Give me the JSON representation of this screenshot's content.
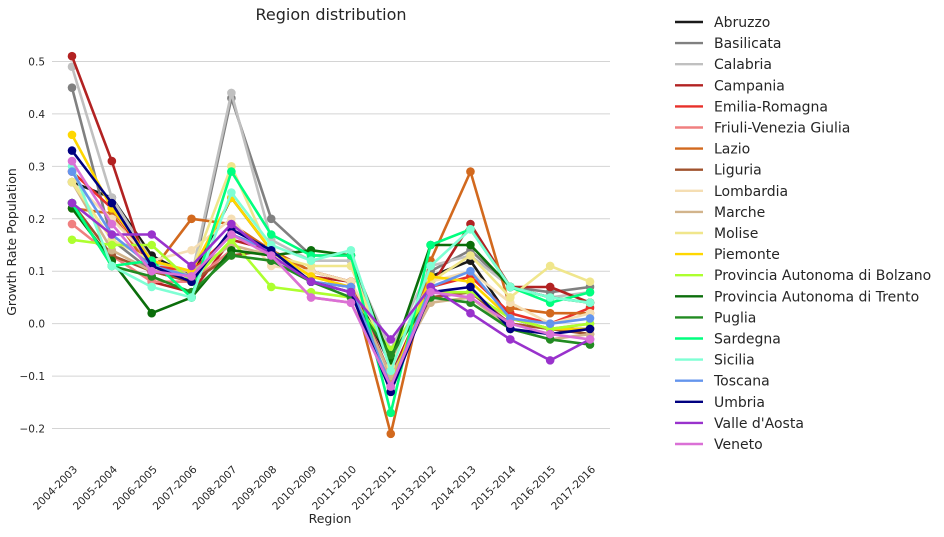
{
  "chart_data": {
    "type": "line",
    "title": "Region distribution",
    "xlabel": "Region",
    "ylabel": "Growth Rate Population",
    "ylim": [
      -0.26,
      0.56
    ],
    "yticks": [
      -0.2,
      -0.1,
      0.0,
      0.1,
      0.2,
      0.3,
      0.4,
      0.5
    ],
    "ytick_labels": [
      "−0.2",
      "−0.1",
      "0.0",
      "0.1",
      "0.2",
      "0.3",
      "0.4",
      "0.5"
    ],
    "grid": "horizontal",
    "legend_position": "right-outside",
    "categories": [
      "2004-2003",
      "2005-2004",
      "2006-2005",
      "2007-2006",
      "2008-2007",
      "2009-2008",
      "2010-2009",
      "2011-2010",
      "2012-2011",
      "2013-2012",
      "2014-2013",
      "2015-2014",
      "2016-2015",
      "2017-2016"
    ],
    "series": [
      {
        "name": "Abruzzo",
        "color": "#1a1a1a",
        "values": [
          0.27,
          0.24,
          0.13,
          0.09,
          0.24,
          0.14,
          0.1,
          0.08,
          -0.08,
          0.09,
          0.12,
          0.01,
          -0.01,
          -0.01
        ]
      },
      {
        "name": "Basilicata",
        "color": "#808080",
        "values": [
          0.45,
          0.16,
          0.1,
          0.08,
          0.43,
          0.2,
          0.13,
          0.13,
          -0.08,
          0.1,
          0.14,
          0.07,
          0.06,
          0.07
        ]
      },
      {
        "name": "Calabria",
        "color": "#c0c0c0",
        "values": [
          0.49,
          0.24,
          0.12,
          0.09,
          0.44,
          0.16,
          0.12,
          0.12,
          -0.05,
          0.11,
          0.13,
          0.07,
          0.05,
          0.06
        ]
      },
      {
        "name": "Campania",
        "color": "#b22222",
        "values": [
          0.51,
          0.31,
          0.08,
          0.06,
          0.16,
          0.14,
          0.09,
          0.08,
          -0.1,
          0.07,
          0.19,
          0.07,
          0.07,
          0.04
        ]
      },
      {
        "name": "Emilia-Romagna",
        "color": "#e8302a",
        "values": [
          0.29,
          0.22,
          0.11,
          0.1,
          0.17,
          0.14,
          0.1,
          0.08,
          -0.13,
          0.07,
          0.09,
          0.02,
          0.0,
          0.03
        ]
      },
      {
        "name": "Friuli-Venezia Giulia",
        "color": "#f08080",
        "values": [
          0.19,
          0.13,
          0.08,
          0.08,
          0.14,
          0.13,
          0.05,
          0.04,
          -0.11,
          0.05,
          0.06,
          0.0,
          -0.01,
          0.0
        ]
      },
      {
        "name": "Lazio",
        "color": "#d2691e",
        "values": [
          0.22,
          0.21,
          0.1,
          0.2,
          0.19,
          0.14,
          0.1,
          0.08,
          -0.21,
          0.12,
          0.29,
          0.03,
          0.02,
          0.02
        ]
      },
      {
        "name": "Liguria",
        "color": "#a0522d",
        "values": [
          0.23,
          0.13,
          0.1,
          0.08,
          0.13,
          0.14,
          0.08,
          0.07,
          -0.1,
          0.05,
          0.06,
          0.0,
          -0.01,
          -0.02
        ]
      },
      {
        "name": "Lombardia",
        "color": "#f5deb3",
        "values": [
          0.27,
          0.2,
          0.12,
          0.14,
          0.2,
          0.11,
          0.1,
          0.08,
          -0.06,
          0.08,
          0.1,
          0.04,
          0.0,
          0.02
        ]
      },
      {
        "name": "Marche",
        "color": "#d2b48c",
        "values": [
          0.27,
          0.14,
          0.1,
          0.1,
          0.15,
          0.13,
          0.08,
          0.07,
          -0.1,
          0.04,
          0.05,
          -0.01,
          -0.03,
          -0.02
        ]
      },
      {
        "name": "Molise",
        "color": "#f0e68c",
        "values": [
          0.27,
          0.16,
          0.12,
          0.1,
          0.3,
          0.13,
          0.11,
          0.11,
          -0.08,
          0.08,
          0.13,
          0.05,
          0.11,
          0.08
        ]
      },
      {
        "name": "Piemonte",
        "color": "#ffd700",
        "values": [
          0.36,
          0.22,
          0.12,
          0.1,
          0.24,
          0.14,
          0.09,
          0.07,
          -0.12,
          0.09,
          0.08,
          0.01,
          -0.01,
          -0.01
        ]
      },
      {
        "name": "Provincia Autonoma di Bolzano",
        "color": "#adff2f",
        "values": [
          0.16,
          0.15,
          0.15,
          0.08,
          0.16,
          0.07,
          0.06,
          0.05,
          -0.05,
          0.06,
          0.06,
          0.01,
          -0.01,
          0.0
        ]
      },
      {
        "name": "Provincia Autonoma di Trento",
        "color": "#0b6e0b",
        "values": [
          0.22,
          0.12,
          0.02,
          0.05,
          0.14,
          0.13,
          0.14,
          0.13,
          -0.07,
          0.15,
          0.15,
          0.07,
          0.05,
          0.04
        ]
      },
      {
        "name": "Puglia",
        "color": "#228b22",
        "values": [
          0.23,
          0.11,
          0.09,
          0.06,
          0.13,
          0.12,
          0.08,
          0.05,
          -0.06,
          0.05,
          0.04,
          -0.01,
          -0.03,
          -0.04
        ]
      },
      {
        "name": "Sardegna",
        "color": "#00ff7f",
        "values": [
          0.23,
          0.11,
          0.12,
          0.05,
          0.29,
          0.17,
          0.13,
          0.13,
          -0.17,
          0.15,
          0.18,
          0.07,
          0.04,
          0.06
        ]
      },
      {
        "name": "Sicilia",
        "color": "#7fffd4",
        "values": [
          0.3,
          0.11,
          0.07,
          0.05,
          0.25,
          0.15,
          0.12,
          0.14,
          -0.09,
          0.11,
          0.18,
          0.07,
          0.05,
          0.04
        ]
      },
      {
        "name": "Toscana",
        "color": "#6495ed",
        "values": [
          0.29,
          0.17,
          0.11,
          0.09,
          0.17,
          0.14,
          0.08,
          0.07,
          -0.12,
          0.07,
          0.1,
          0.01,
          0.0,
          0.01
        ]
      },
      {
        "name": "Umbria",
        "color": "#000080",
        "values": [
          0.33,
          0.23,
          0.11,
          0.08,
          0.18,
          0.14,
          0.08,
          0.06,
          -0.13,
          0.06,
          0.07,
          -0.01,
          -0.02,
          -0.01
        ]
      },
      {
        "name": "Valle d'Aosta",
        "color": "#9932cc",
        "values": [
          0.23,
          0.17,
          0.17,
          0.11,
          0.19,
          0.13,
          0.08,
          0.06,
          -0.03,
          0.07,
          0.02,
          -0.03,
          -0.07,
          -0.03
        ]
      },
      {
        "name": "Veneto",
        "color": "#da70d6",
        "values": [
          0.31,
          0.19,
          0.1,
          0.09,
          0.17,
          0.13,
          0.05,
          0.04,
          -0.12,
          0.06,
          0.05,
          0.0,
          -0.02,
          -0.03
        ]
      }
    ]
  }
}
